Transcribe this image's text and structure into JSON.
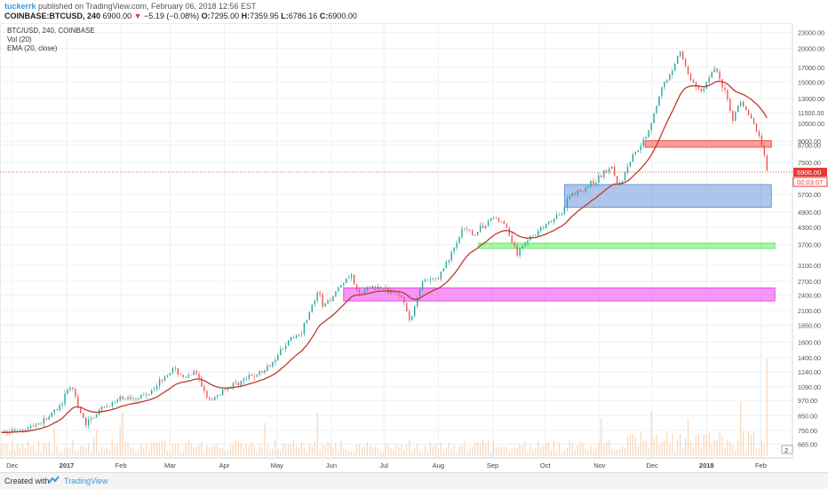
{
  "header": {
    "username": "tuckerrk",
    "published_text": "published on TradingView.com, February 06, 2018 12:56 EST",
    "symbol_line": "COINBASE:BTCUSD, 240",
    "last": "6900.00",
    "change": "−5.19 (−0.08%)",
    "o_label": "O:",
    "o_val": "7295.00",
    "h_label": "H:",
    "h_val": "7359.95",
    "l_label": "L:",
    "l_val": "6786.16",
    "c_label": "C:",
    "c_val": "6900.00"
  },
  "legend": {
    "line1": "BTC/USD, 240, COINBASE",
    "line2": "Vol (20)",
    "line3": "EMA (20, close)"
  },
  "price_tags": {
    "last": "6900.00",
    "countdown": "02:03:07",
    "vol_badge": "2"
  },
  "footer": {
    "created_with": "Created with",
    "brand": "TradingView"
  },
  "colors": {
    "up": "#26a69a",
    "down": "#ef5350",
    "ema": "#c0392b",
    "volume": "#f7c8a0",
    "zone_red": "#ef5350",
    "zone_blue": "#6d95d8",
    "zone_green": "#66ee66",
    "zone_magenta": "#ee44ee",
    "last_price_line": "#e53935"
  },
  "chart_data": {
    "type": "line",
    "scale": "log",
    "grid": true,
    "y_ticks": [
      23000,
      20000,
      17000,
      15000,
      13000,
      11500,
      10500,
      9000,
      8700,
      7500,
      6900,
      5700,
      4900,
      4300,
      3700,
      3100,
      2700,
      2400,
      2100,
      1850,
      1600,
      1400,
      1240,
      1090,
      970,
      850,
      750,
      665
    ],
    "y_tick_labels": [
      "23000.00",
      "20000.00",
      "17000.00",
      "15000.00",
      "13000.00",
      "11500.00",
      "10500.00",
      "9000.00",
      "8700.00",
      "7500.00",
      "6900.00",
      "5700.00",
      "4900.00",
      "4300.00",
      "3700.00",
      "3100.00",
      "2700.00",
      "2400.00",
      "2100.00",
      "1850.00",
      "1600.00",
      "1400.00",
      "1240.00",
      "1090.00",
      "970.00",
      "850.00",
      "750.00",
      "665.00"
    ],
    "x_ticks": [
      "Dec",
      "2017",
      "Feb",
      "Mar",
      "Apr",
      "May",
      "Jun",
      "Jul",
      "Aug",
      "Sep",
      "Oct",
      "Nov",
      "Dec",
      "2018",
      "Feb"
    ],
    "x_tick_dates": [
      "2016-12-01",
      "2017-01-01",
      "2017-02-01",
      "2017-03-01",
      "2017-04-01",
      "2017-05-01",
      "2017-06-01",
      "2017-07-01",
      "2017-08-01",
      "2017-09-01",
      "2017-10-01",
      "2017-11-01",
      "2017-12-01",
      "2018-01-01",
      "2018-02-01"
    ],
    "x_range": [
      "2016-11-25",
      "2018-02-17"
    ],
    "y_range": [
      600,
      24500
    ],
    "series": [
      {
        "name": "BTC/USD",
        "points": [
          [
            "2016-11-25",
            735
          ],
          [
            "2016-12-10",
            765
          ],
          [
            "2016-12-20",
            820
          ],
          [
            "2016-12-28",
            920
          ],
          [
            "2017-01-04",
            1120
          ],
          [
            "2017-01-07",
            920
          ],
          [
            "2017-01-12",
            790
          ],
          [
            "2017-01-20",
            890
          ],
          [
            "2017-02-01",
            980
          ],
          [
            "2017-02-15",
            1010
          ],
          [
            "2017-02-25",
            1180
          ],
          [
            "2017-03-03",
            1270
          ],
          [
            "2017-03-10",
            1170
          ],
          [
            "2017-03-15",
            1240
          ],
          [
            "2017-03-24",
            950
          ],
          [
            "2017-04-01",
            1070
          ],
          [
            "2017-04-15",
            1180
          ],
          [
            "2017-04-25",
            1260
          ],
          [
            "2017-05-05",
            1560
          ],
          [
            "2017-05-15",
            1760
          ],
          [
            "2017-05-20",
            2100
          ],
          [
            "2017-05-25",
            2500
          ],
          [
            "2017-05-27",
            2150
          ],
          [
            "2017-06-05",
            2550
          ],
          [
            "2017-06-12",
            2900
          ],
          [
            "2017-06-16",
            2400
          ],
          [
            "2017-06-25",
            2600
          ],
          [
            "2017-07-01",
            2500
          ],
          [
            "2017-07-10",
            2450
          ],
          [
            "2017-07-16",
            1900
          ],
          [
            "2017-07-22",
            2650
          ],
          [
            "2017-08-01",
            2780
          ],
          [
            "2017-08-08",
            3400
          ],
          [
            "2017-08-15",
            4200
          ],
          [
            "2017-08-22",
            4050
          ],
          [
            "2017-09-01",
            4700
          ],
          [
            "2017-09-08",
            4400
          ],
          [
            "2017-09-15",
            3400
          ],
          [
            "2017-09-20",
            3850
          ],
          [
            "2017-10-01",
            4350
          ],
          [
            "2017-10-10",
            4800
          ],
          [
            "2017-10-15",
            5700
          ],
          [
            "2017-10-22",
            5900
          ],
          [
            "2017-11-01",
            6600
          ],
          [
            "2017-11-08",
            7300
          ],
          [
            "2017-11-12",
            6100
          ],
          [
            "2017-11-20",
            8000
          ],
          [
            "2017-11-28",
            9500
          ],
          [
            "2017-12-07",
            14500
          ],
          [
            "2017-12-10",
            15200
          ],
          [
            "2017-12-17",
            19700
          ],
          [
            "2017-12-22",
            15500
          ],
          [
            "2017-12-29",
            13800
          ],
          [
            "2018-01-06",
            17100
          ],
          [
            "2018-01-12",
            13400
          ],
          [
            "2018-01-16",
            10900
          ],
          [
            "2018-01-20",
            12700
          ],
          [
            "2018-01-26",
            11100
          ],
          [
            "2018-02-01",
            9100
          ],
          [
            "2018-02-05",
            6900
          ]
        ]
      }
    ],
    "zones": [
      {
        "name": "red",
        "from": "2017-11-27",
        "to": "2018-02-07",
        "low": 8550,
        "high": 9050
      },
      {
        "name": "blue",
        "from": "2017-10-12",
        "to": "2018-02-07",
        "low": 5100,
        "high": 6200
      },
      {
        "name": "green",
        "from": "2017-08-24",
        "to": "2018-02-09",
        "low": 3580,
        "high": 3750
      },
      {
        "name": "magenta",
        "from": "2017-06-08",
        "to": "2018-02-09",
        "low": 2280,
        "high": 2550
      }
    ]
  }
}
